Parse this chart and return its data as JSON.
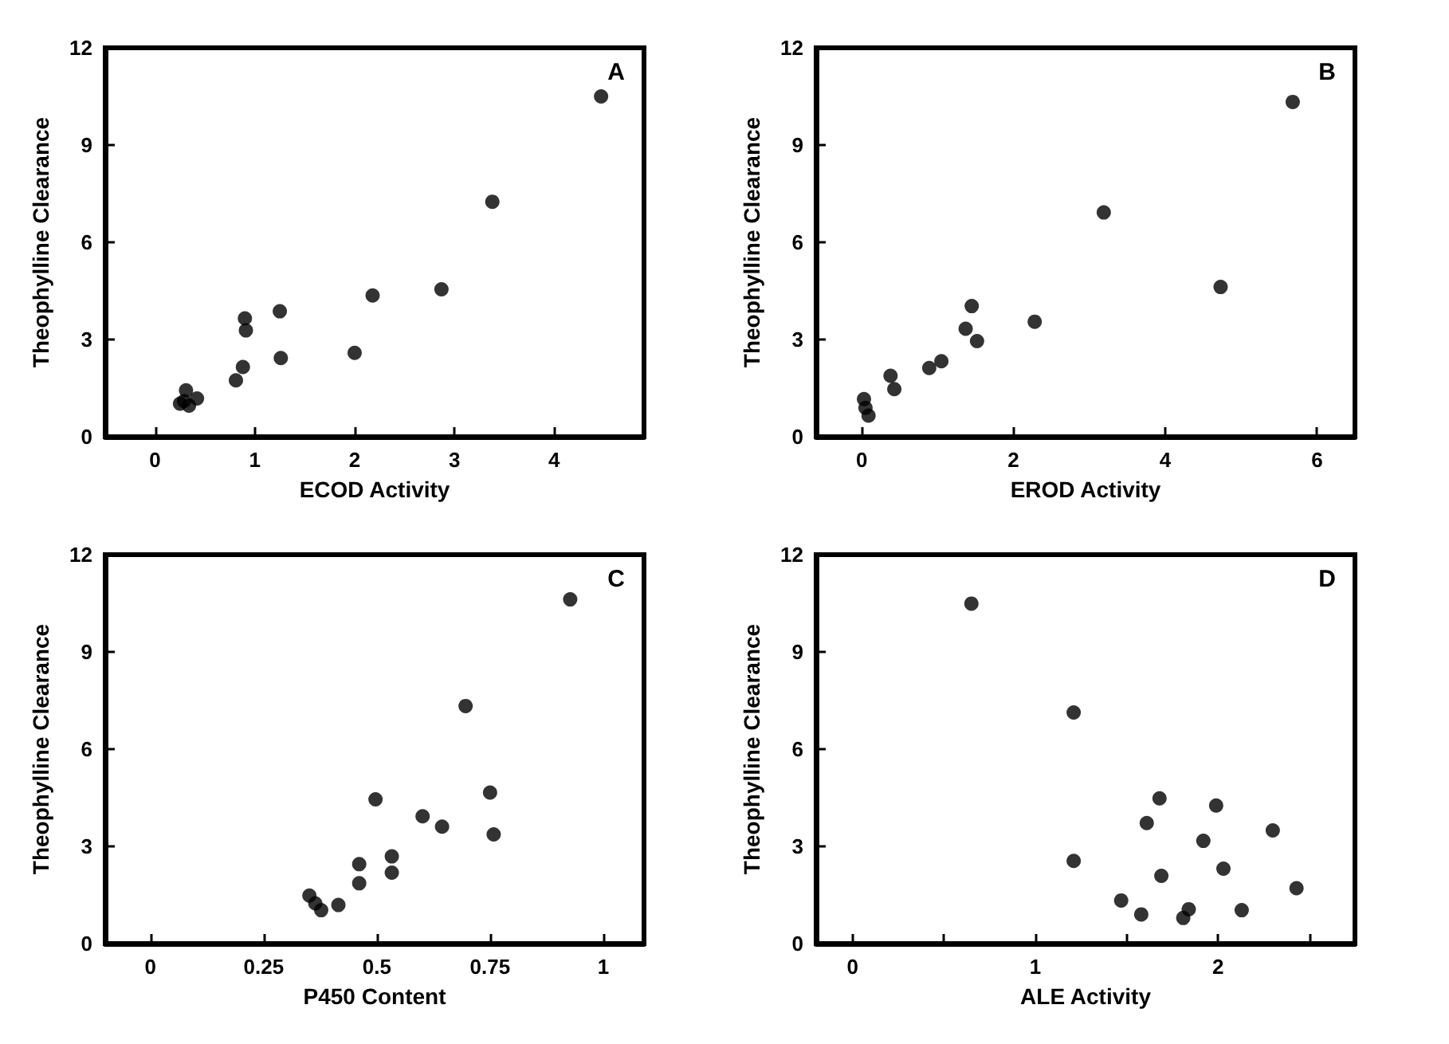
{
  "chart_data": [
    {
      "type": "scatter",
      "xlabel": "ECOD Activity",
      "ylabel": "Theophylline Clearance",
      "annotations": [
        "A"
      ],
      "marker": "circle",
      "grid": false,
      "xlim": [
        -0.5,
        4.9
      ],
      "xticks": [
        0,
        1,
        2,
        3,
        4
      ],
      "ylim": [
        0,
        12
      ],
      "yticks": [
        0,
        3,
        6,
        9,
        12
      ],
      "series": [
        {
          "color": "#000000",
          "x": [
            4.47,
            3.38,
            2.87,
            2.18,
            2.0,
            1.25,
            1.26,
            0.9,
            0.91,
            0.88,
            0.81,
            0.31,
            0.25,
            0.34,
            0.42,
            0.29
          ],
          "values": [
            10.5,
            7.25,
            4.55,
            4.36,
            2.59,
            3.87,
            2.43,
            3.65,
            3.28,
            2.15,
            1.74,
            1.43,
            1.02,
            0.96,
            1.18,
            1.1
          ]
        }
      ]
    },
    {
      "type": "scatter",
      "xlabel": "EROD Activity",
      "ylabel": "Theophylline Clearance",
      "annotations": [
        "B"
      ],
      "marker": "circle",
      "grid": false,
      "xlim": [
        -0.6,
        6.5
      ],
      "xticks": [
        0,
        2,
        4,
        6
      ],
      "ylim": [
        0,
        12
      ],
      "yticks": [
        0,
        3,
        6,
        9,
        12
      ],
      "series": [
        {
          "color": "#000000",
          "x": [
            5.68,
            3.19,
            4.73,
            2.28,
            1.45,
            1.37,
            1.52,
            1.05,
            0.89,
            0.38,
            0.43,
            0.03,
            0.05,
            0.09
          ],
          "values": [
            10.33,
            6.92,
            4.62,
            3.55,
            4.03,
            3.33,
            2.95,
            2.33,
            2.12,
            1.88,
            1.47,
            1.16,
            0.89,
            0.65
          ]
        }
      ]
    },
    {
      "type": "scatter",
      "xlabel": "P450 Content",
      "ylabel": "Theophylline Clearance",
      "annotations": [
        "C"
      ],
      "marker": "circle",
      "grid": false,
      "xlim": [
        -0.1,
        1.09
      ],
      "xticks": [
        0,
        0.25,
        0.5,
        0.75,
        1
      ],
      "ylim": [
        0,
        12
      ],
      "yticks": [
        0,
        3,
        6,
        9,
        12
      ],
      "series": [
        {
          "color": "#000000",
          "x": [
            0.927,
            0.696,
            0.75,
            0.758,
            0.497,
            0.601,
            0.644,
            0.533,
            0.533,
            0.461,
            0.461,
            0.415,
            0.351,
            0.364,
            0.377
          ],
          "values": [
            10.62,
            7.33,
            4.66,
            3.37,
            4.45,
            3.93,
            3.61,
            2.69,
            2.19,
            2.45,
            1.86,
            1.19,
            1.48,
            1.24,
            1.03
          ]
        }
      ]
    },
    {
      "type": "scatter",
      "xlabel": "ALE Activity",
      "ylabel": "Theophylline Clearance",
      "annotations": [
        "D"
      ],
      "marker": "circle",
      "grid": false,
      "xlim": [
        -0.2,
        2.75
      ],
      "xticks": [
        0,
        {
          "value": 0.5,
          "label": null
        },
        1,
        {
          "value": 1.5,
          "label": null
        },
        2,
        {
          "value": 2.5,
          "label": null
        }
      ],
      "ylim": [
        0,
        12
      ],
      "yticks": [
        0,
        3,
        6,
        9,
        12
      ],
      "series": [
        {
          "color": "#000000",
          "x": [
            0.65,
            1.21,
            1.21,
            1.68,
            1.61,
            1.99,
            1.92,
            2.3,
            2.03,
            1.69,
            2.43,
            1.47,
            1.58,
            1.81,
            1.84,
            2.13
          ],
          "values": [
            10.49,
            7.13,
            2.55,
            4.48,
            3.72,
            4.26,
            3.17,
            3.49,
            2.31,
            2.09,
            1.71,
            1.33,
            0.9,
            0.79,
            1.06,
            1.03
          ]
        }
      ]
    }
  ]
}
